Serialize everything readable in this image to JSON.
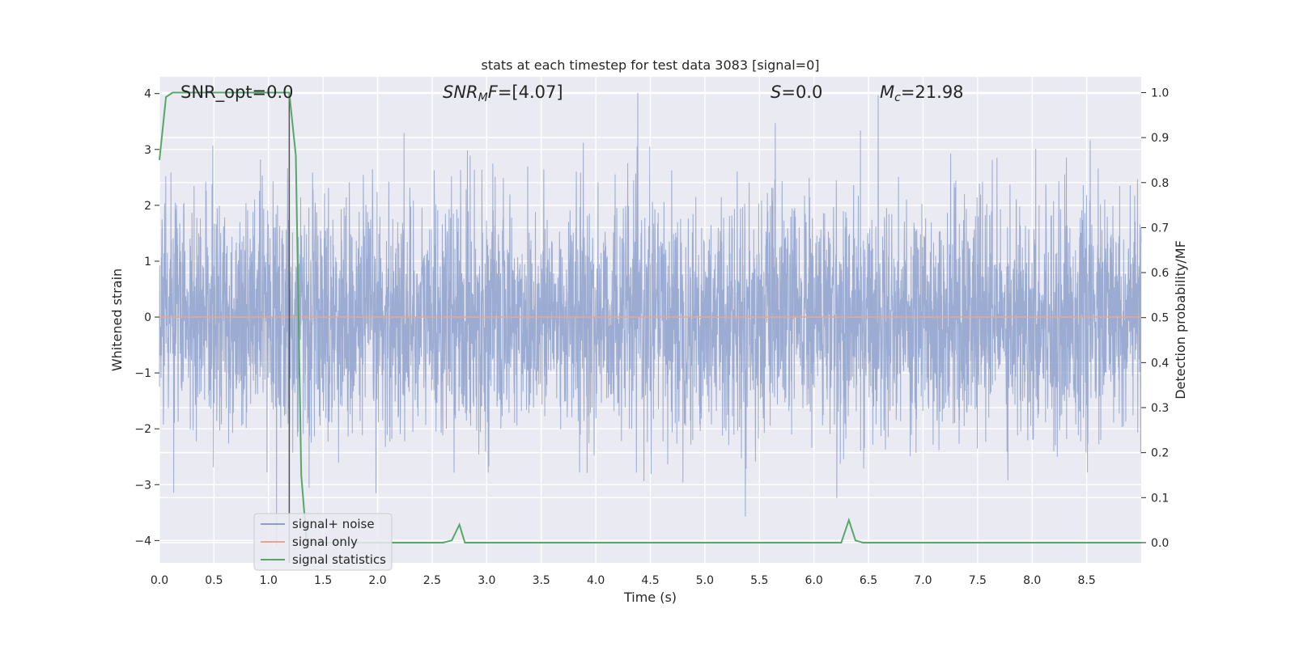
{
  "chart_data": {
    "type": "line",
    "title": "stats at each timestep for test data 3083 [signal=0]",
    "xlabel": "Time (s)",
    "ylabel_left": "Whitened strain",
    "ylabel_right": "Detection probability/MF",
    "xlim": [
      0.0,
      9.0
    ],
    "ylim_left": [
      -4.4,
      4.3
    ],
    "ylim_right": [
      -0.045,
      1.035
    ],
    "x_ticks": [
      0.0,
      0.5,
      1.0,
      1.5,
      2.0,
      2.5,
      3.0,
      3.5,
      4.0,
      4.5,
      5.0,
      5.5,
      6.0,
      6.5,
      7.0,
      7.5,
      8.0,
      8.5
    ],
    "x_tick_labels": [
      "0.0",
      "0.5",
      "1.0",
      "1.5",
      "2.0",
      "2.5",
      "3.0",
      "3.5",
      "4.0",
      "4.5",
      "5.0",
      "5.5",
      "6.0",
      "6.5",
      "7.0",
      "7.5",
      "8.0",
      "8.5"
    ],
    "y_left_ticks": [
      -4,
      -3,
      -2,
      -1,
      0,
      1,
      2,
      3,
      4
    ],
    "y_left_tick_labels": [
      "−4",
      "−3",
      "−2",
      "−1",
      "0",
      "1",
      "2",
      "3",
      "4"
    ],
    "y_right_ticks": [
      0.0,
      0.1,
      0.2,
      0.3,
      0.4,
      0.5,
      0.6,
      0.7,
      0.8,
      0.9,
      1.0
    ],
    "y_right_tick_labels": [
      "0.0",
      "0.1",
      "0.2",
      "0.3",
      "0.4",
      "0.5",
      "0.6",
      "0.7",
      "0.8",
      "0.9",
      "1.0"
    ],
    "grid": true,
    "legend_placement": "lower-left",
    "annotations": {
      "snr_opt": "SNR_opt=0.0",
      "snr_mf_main": "SNR",
      "snr_mf_sub": "M",
      "snr_mf_tail": "F",
      "snr_mf_value": "=[4.07]",
      "s_label": "S",
      "s_value": "=0.0",
      "mc_label": "M",
      "mc_sub": "c",
      "mc_value": "=21.98"
    },
    "vertical_marker_x": 1.19,
    "series": [
      {
        "name": "signal+ noise",
        "axis": "left",
        "color": "#8da0cb",
        "description_only": false,
        "noise_amplitude_typical": 1.6,
        "noise_peak_max": 4.1
      },
      {
        "name": "signal only",
        "axis": "left",
        "color": "#e8a58c",
        "x": [
          0.0,
          9.0
        ],
        "values": [
          0.0,
          0.0
        ]
      },
      {
        "name": "signal statistics",
        "axis": "right",
        "color": "#55a868",
        "x": [
          0.0,
          0.06,
          0.12,
          0.2,
          0.4,
          0.6,
          0.8,
          1.0,
          1.1,
          1.19,
          1.25,
          1.3,
          1.35,
          1.4,
          1.6,
          2.0,
          2.4,
          2.6,
          2.68,
          2.75,
          2.8,
          2.9,
          3.5,
          4.5,
          5.5,
          6.0,
          6.25,
          6.32,
          6.38,
          6.45,
          7.0,
          8.0,
          9.0
        ],
        "values": [
          0.85,
          0.99,
          1.0,
          1.0,
          1.0,
          1.0,
          1.0,
          1.0,
          1.0,
          1.0,
          0.86,
          0.15,
          0.0,
          0.0,
          0.0,
          0.0,
          0.0,
          0.0,
          0.005,
          0.04,
          0.0,
          0.0,
          0.0,
          0.0,
          0.0,
          0.0,
          0.0,
          0.05,
          0.005,
          0.0,
          0.0,
          0.0,
          0.0
        ]
      }
    ],
    "legend": [
      {
        "label": "signal+ noise",
        "color": "#8da0cb"
      },
      {
        "label": "signal only",
        "color": "#e8a58c"
      },
      {
        "label": "signal statistics",
        "color": "#55a868"
      }
    ],
    "colors": {
      "plot_background": "#eaeaf2",
      "grid": "#ffffff",
      "marker_line": "#555555"
    }
  }
}
